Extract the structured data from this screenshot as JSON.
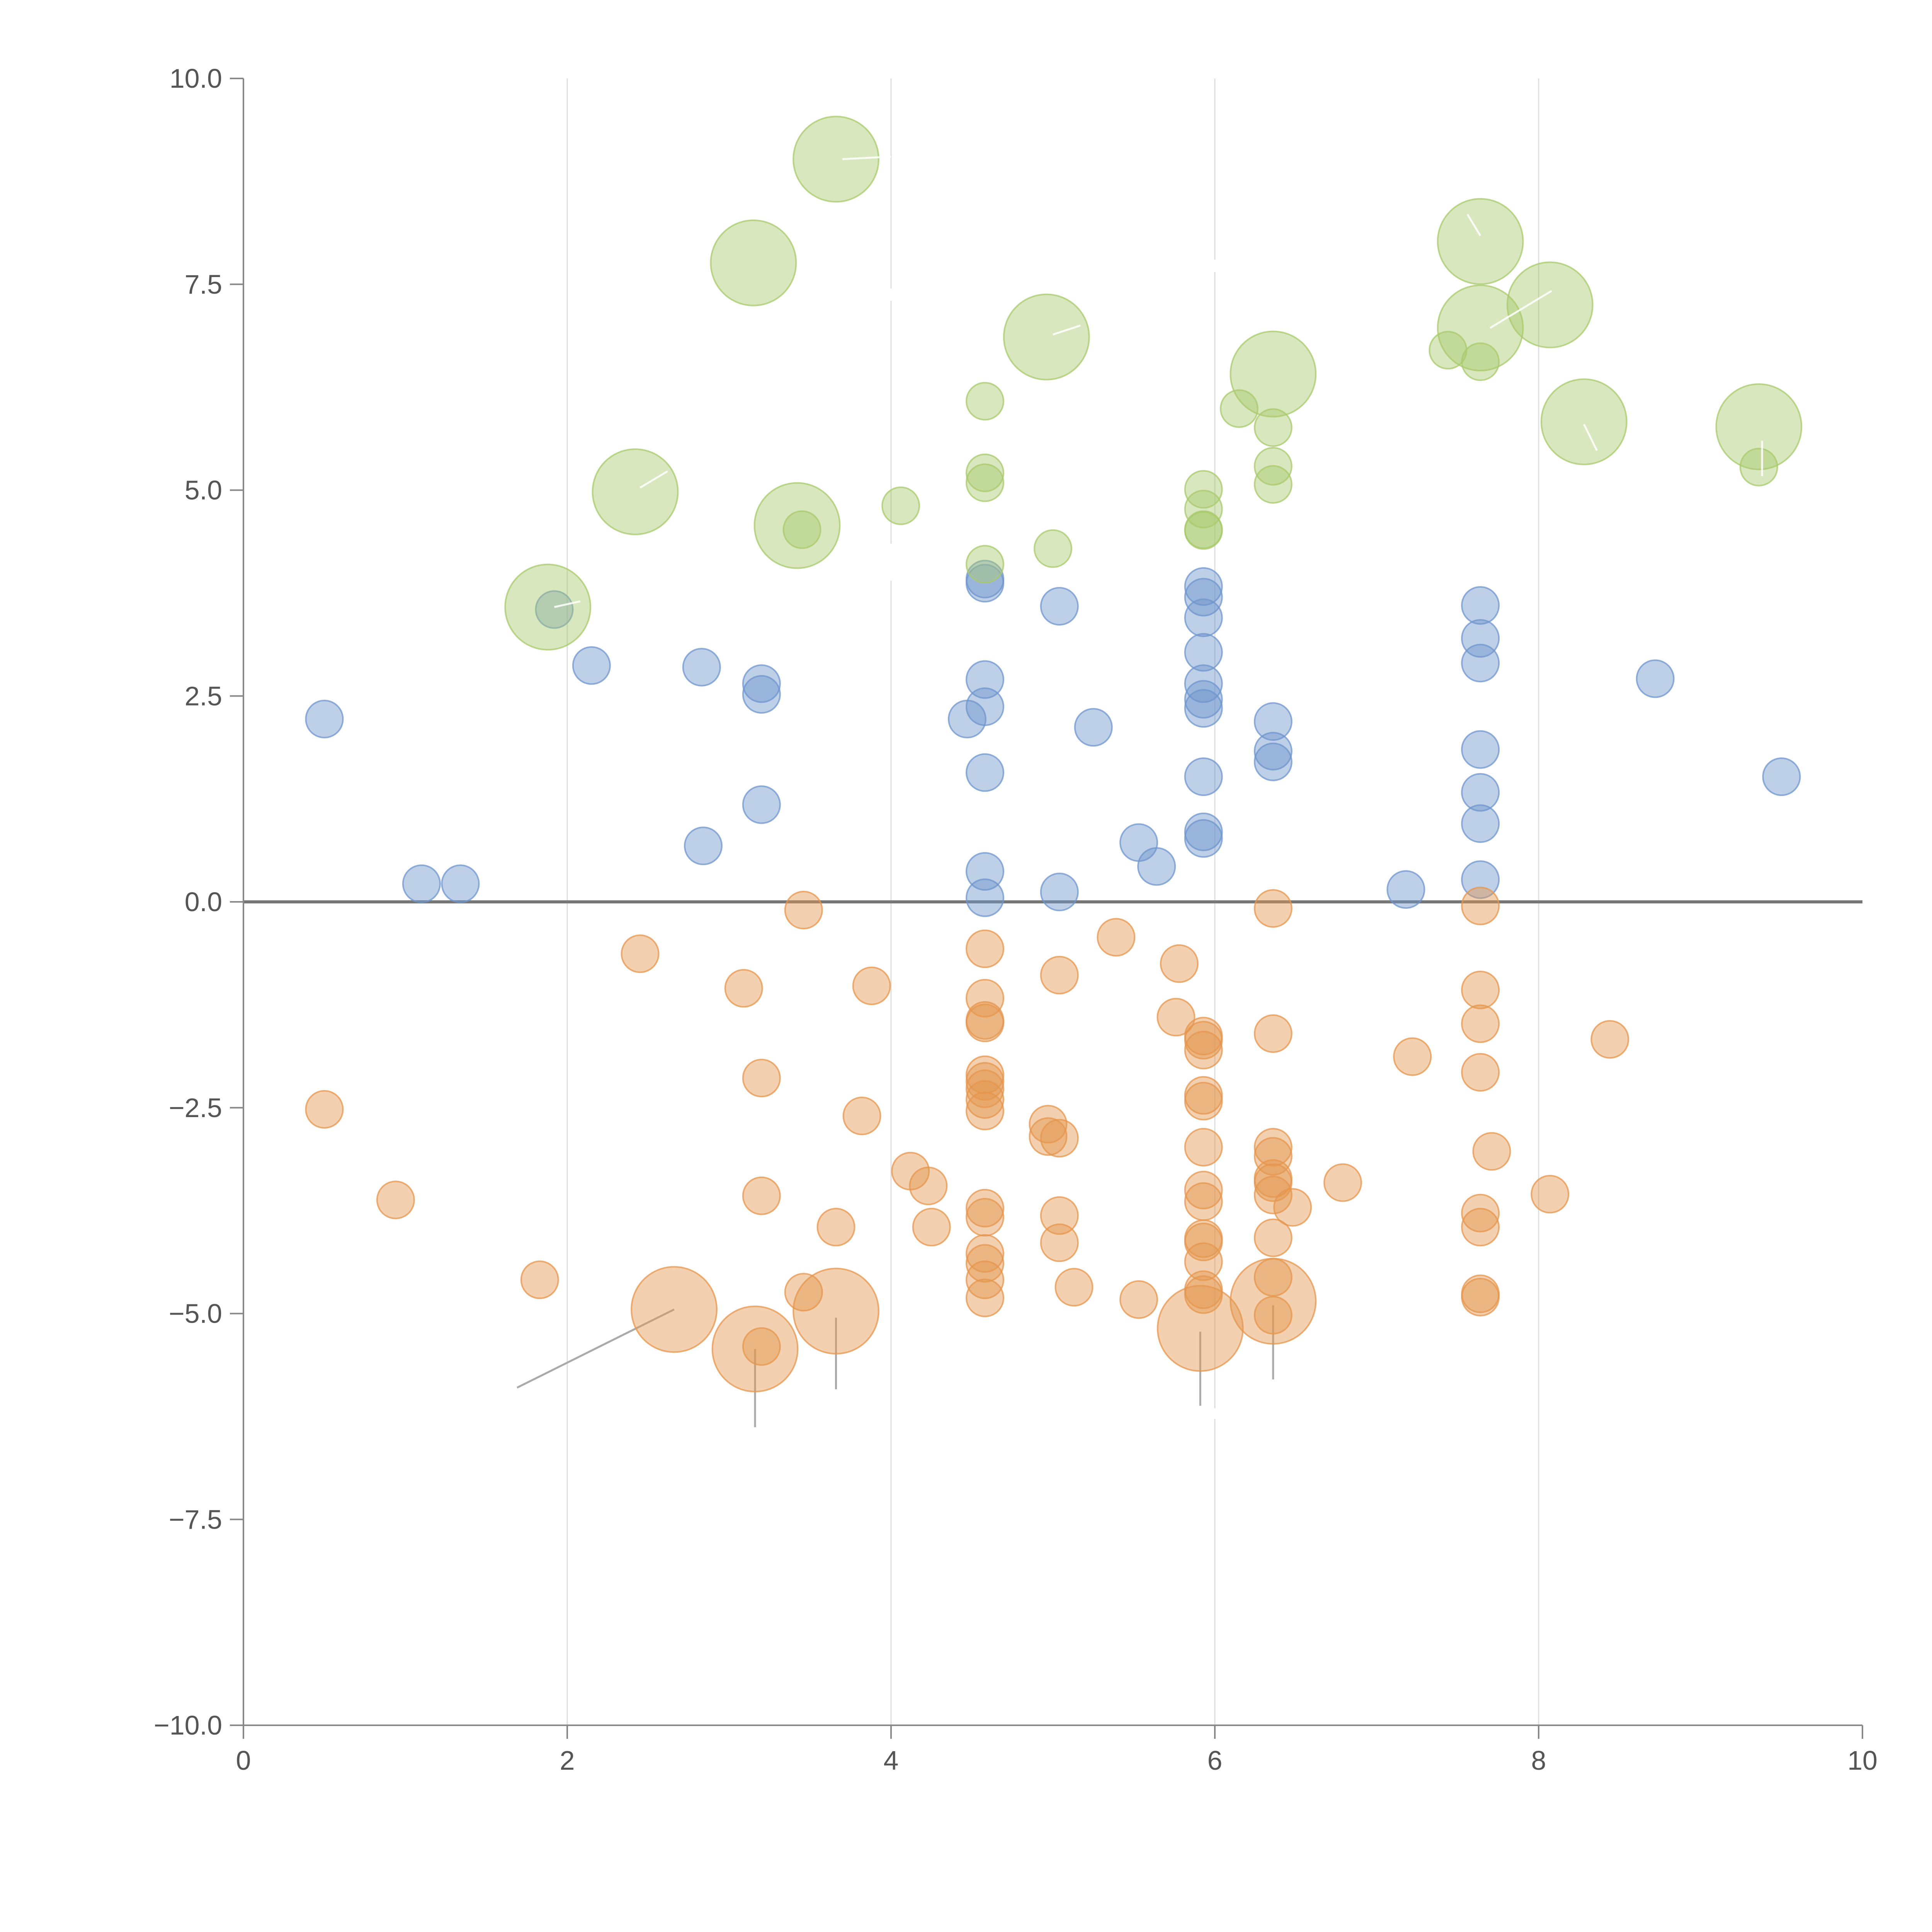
{
  "chart_data": {
    "type": "scatter",
    "title": "",
    "xlabel": "",
    "ylabel": "",
    "xlim": [
      0,
      10
    ],
    "ylim": [
      -10,
      10
    ],
    "x_ticks": [
      0,
      2,
      4,
      6,
      8,
      10
    ],
    "x_tick_labels": [
      "0",
      "2",
      "4",
      "6",
      "8",
      "10"
    ],
    "y_ticks": [
      10,
      7.5,
      5,
      2.5,
      0,
      -2.5,
      -5,
      -7.5,
      -10
    ],
    "y_tick_labels": [
      "10.0",
      "7.5",
      "5.0",
      "2.5",
      "0.0",
      "−2.5",
      "−5.0",
      "−7.5",
      "−10.0"
    ],
    "vertical_gridlines": [
      2,
      4,
      6,
      8
    ],
    "zero_line": 0,
    "legend": "none",
    "series": [
      {
        "name": "blue",
        "color": "#6f95cd",
        "points": [
          [
            0.5,
            2.22,
            1
          ],
          [
            1.1,
            0.22,
            1
          ],
          [
            1.34,
            0.22,
            1
          ],
          [
            1.92,
            3.55,
            1
          ],
          [
            2.15,
            2.87,
            1
          ],
          [
            2.83,
            2.85,
            1
          ],
          [
            2.84,
            0.68,
            1
          ],
          [
            3.2,
            2.65,
            1
          ],
          [
            3.2,
            2.52,
            1
          ],
          [
            3.2,
            1.18,
            1
          ],
          [
            4.47,
            2.22,
            1
          ],
          [
            4.58,
            3.92,
            1
          ],
          [
            4.58,
            3.87,
            1
          ],
          [
            4.58,
            2.7,
            1
          ],
          [
            4.58,
            2.37,
            1
          ],
          [
            4.58,
            1.57,
            1
          ],
          [
            4.58,
            0.37,
            1
          ],
          [
            4.58,
            0.05,
            1
          ],
          [
            5.04,
            3.59,
            1
          ],
          [
            5.04,
            0.12,
            1
          ],
          [
            5.25,
            2.12,
            1
          ],
          [
            5.53,
            0.72,
            1
          ],
          [
            5.64,
            0.43,
            1
          ],
          [
            5.93,
            3.83,
            1
          ],
          [
            5.93,
            3.7,
            1
          ],
          [
            5.93,
            3.45,
            1
          ],
          [
            5.93,
            3.03,
            1
          ],
          [
            5.93,
            2.65,
            1
          ],
          [
            5.93,
            2.46,
            1
          ],
          [
            5.93,
            2.35,
            1
          ],
          [
            5.93,
            1.52,
            1
          ],
          [
            5.93,
            0.85,
            1
          ],
          [
            5.93,
            0.77,
            1
          ],
          [
            6.36,
            2.19,
            1
          ],
          [
            6.36,
            1.83,
            1
          ],
          [
            6.36,
            1.7,
            1
          ],
          [
            7.18,
            0.15,
            1
          ],
          [
            7.64,
            3.6,
            1
          ],
          [
            7.64,
            3.2,
            1
          ],
          [
            7.64,
            2.9,
            1
          ],
          [
            7.64,
            1.85,
            1
          ],
          [
            7.64,
            1.33,
            1
          ],
          [
            7.64,
            0.95,
            1
          ],
          [
            7.64,
            0.27,
            1
          ],
          [
            8.72,
            2.71,
            1
          ],
          [
            9.5,
            1.52,
            1
          ]
        ]
      },
      {
        "name": "orange",
        "color": "#e5964e",
        "points": [
          [
            0.5,
            -2.52,
            1
          ],
          [
            0.94,
            -3.62,
            1
          ],
          [
            1.83,
            -4.59,
            1
          ],
          [
            2.45,
            -0.63,
            1
          ],
          [
            2.66,
            -4.95,
            2.3
          ],
          [
            3.09,
            -1.05,
            1
          ],
          [
            3.16,
            -5.43,
            2.3
          ],
          [
            3.2,
            -2.14,
            1
          ],
          [
            3.2,
            -3.57,
            1
          ],
          [
            3.2,
            -5.4,
            1
          ],
          [
            3.46,
            -0.1,
            1
          ],
          [
            3.46,
            -4.74,
            1
          ],
          [
            3.66,
            -4.97,
            2.3
          ],
          [
            3.66,
            -3.95,
            1
          ],
          [
            3.82,
            -2.6,
            1
          ],
          [
            3.88,
            -1.02,
            1
          ],
          [
            4.12,
            -3.27,
            1
          ],
          [
            4.23,
            -3.45,
            1
          ],
          [
            4.25,
            -3.95,
            1
          ],
          [
            4.58,
            -0.57,
            1
          ],
          [
            4.58,
            -1.17,
            1
          ],
          [
            4.58,
            -1.44,
            1
          ],
          [
            4.58,
            -1.47,
            1
          ],
          [
            4.58,
            -2.1,
            1
          ],
          [
            4.58,
            -2.18,
            1
          ],
          [
            4.58,
            -2.27,
            1
          ],
          [
            4.58,
            -2.4,
            1
          ],
          [
            4.58,
            -2.54,
            1
          ],
          [
            4.58,
            -3.72,
            1
          ],
          [
            4.58,
            -3.83,
            1
          ],
          [
            4.58,
            -4.27,
            1
          ],
          [
            4.58,
            -4.39,
            1
          ],
          [
            4.58,
            -4.59,
            1
          ],
          [
            4.58,
            -4.81,
            1
          ],
          [
            4.97,
            -2.7,
            1
          ],
          [
            4.97,
            -2.85,
            1
          ],
          [
            5.04,
            -2.87,
            1
          ],
          [
            5.04,
            -0.89,
            1
          ],
          [
            5.04,
            -3.81,
            1
          ],
          [
            5.04,
            -4.14,
            1
          ],
          [
            5.13,
            -4.68,
            1
          ],
          [
            5.39,
            -0.43,
            1
          ],
          [
            5.53,
            -4.83,
            1
          ],
          [
            5.76,
            -1.4,
            1
          ],
          [
            5.78,
            -0.75,
            1
          ],
          [
            5.91,
            -5.18,
            2.3
          ],
          [
            5.93,
            -1.63,
            1
          ],
          [
            5.93,
            -1.68,
            1
          ],
          [
            5.93,
            -1.8,
            1
          ],
          [
            5.93,
            -2.35,
            1
          ],
          [
            5.93,
            -2.42,
            1
          ],
          [
            5.93,
            -2.98,
            1
          ],
          [
            5.93,
            -3.5,
            1
          ],
          [
            5.93,
            -3.64,
            1
          ],
          [
            5.93,
            -4.09,
            1
          ],
          [
            5.93,
            -4.13,
            1
          ],
          [
            5.93,
            -4.37,
            1
          ],
          [
            5.93,
            -4.71,
            1
          ],
          [
            5.93,
            -4.77,
            1
          ],
          [
            6.36,
            -0.08,
            1
          ],
          [
            6.36,
            -1.6,
            1
          ],
          [
            6.36,
            -2.98,
            1
          ],
          [
            6.36,
            -3.09,
            1
          ],
          [
            6.36,
            -3.36,
            1
          ],
          [
            6.36,
            -3.41,
            1
          ],
          [
            6.36,
            -3.56,
            1
          ],
          [
            6.36,
            -4.08,
            1
          ],
          [
            6.36,
            -4.56,
            1
          ],
          [
            6.36,
            -4.85,
            2.3
          ],
          [
            6.36,
            -5.02,
            1
          ],
          [
            6.48,
            -3.71,
            1
          ],
          [
            6.79,
            -3.41,
            1
          ],
          [
            7.22,
            -1.88,
            1
          ],
          [
            7.64,
            -0.05,
            1
          ],
          [
            7.64,
            -1.07,
            1
          ],
          [
            7.64,
            -1.48,
            1
          ],
          [
            7.64,
            -2.07,
            1
          ],
          [
            7.64,
            -3.78,
            1
          ],
          [
            7.64,
            -3.95,
            1
          ],
          [
            7.64,
            -4.76,
            1
          ],
          [
            7.64,
            -4.8,
            1
          ],
          [
            7.71,
            -3.03,
            1
          ],
          [
            8.07,
            -3.55,
            1
          ],
          [
            8.44,
            -1.67,
            1
          ]
        ]
      },
      {
        "name": "green",
        "color": "#a8c96c",
        "points": [
          [
            1.88,
            3.58,
            2.3
          ],
          [
            2.42,
            4.98,
            2.3
          ],
          [
            3.15,
            7.76,
            2.3
          ],
          [
            3.42,
            4.57,
            2.3
          ],
          [
            3.45,
            4.52,
            1
          ],
          [
            3.66,
            9.02,
            2.3
          ],
          [
            4.06,
            4.81,
            1
          ],
          [
            4.58,
            6.08,
            1
          ],
          [
            4.58,
            5.21,
            1
          ],
          [
            4.58,
            5.09,
            1
          ],
          [
            4.58,
            4.1,
            1
          ],
          [
            4.96,
            6.86,
            2.3
          ],
          [
            5.0,
            4.29,
            1
          ],
          [
            5.93,
            5.01,
            1
          ],
          [
            5.93,
            4.77,
            1
          ],
          [
            5.93,
            4.52,
            1
          ],
          [
            5.93,
            4.51,
            1
          ],
          [
            6.15,
            5.99,
            1
          ],
          [
            6.36,
            6.41,
            2.3
          ],
          [
            6.36,
            5.76,
            1
          ],
          [
            6.36,
            5.29,
            1
          ],
          [
            6.36,
            5.07,
            1
          ],
          [
            7.44,
            6.7,
            1
          ],
          [
            7.64,
            8.02,
            2.3
          ],
          [
            7.64,
            6.97,
            2.3
          ],
          [
            7.64,
            6.56,
            1
          ],
          [
            8.07,
            7.25,
            2.3
          ],
          [
            8.28,
            5.83,
            2.3
          ],
          [
            9.36,
            5.77,
            2.3
          ],
          [
            9.36,
            5.28,
            1
          ]
        ]
      }
    ],
    "annotation_segments": [
      {
        "from": [
          2.66,
          -4.95
        ],
        "to": [
          1.69,
          -5.9
        ]
      },
      {
        "from": [
          3.16,
          -5.43
        ],
        "to": [
          3.16,
          -6.38
        ]
      },
      {
        "from": [
          3.66,
          -5.05
        ],
        "to": [
          3.66,
          -5.92
        ]
      },
      {
        "from": [
          5.91,
          -5.22
        ],
        "to": [
          5.91,
          -6.12
        ]
      },
      {
        "from": [
          6.36,
          -4.9
        ],
        "to": [
          6.36,
          -5.8
        ]
      }
    ],
    "inner_segments": [
      {
        "from": [
          1.92,
          3.58
        ],
        "to": [
          2.08,
          3.65
        ]
      },
      {
        "from": [
          2.45,
          5.03
        ],
        "to": [
          2.62,
          5.23
        ]
      },
      {
        "from": [
          3.7,
          9.02
        ],
        "to": [
          4.0,
          9.05
        ]
      },
      {
        "from": [
          5.0,
          6.89
        ],
        "to": [
          5.17,
          7.0
        ]
      },
      {
        "from": [
          7.7,
          6.97
        ],
        "to": [
          8.08,
          7.42
        ]
      },
      {
        "from": [
          7.64,
          8.09
        ],
        "to": [
          7.56,
          8.35
        ]
      },
      {
        "from": [
          8.28,
          5.8
        ],
        "to": [
          8.36,
          5.48
        ]
      },
      {
        "from": [
          9.38,
          5.6
        ],
        "to": [
          9.38,
          5.17
        ]
      }
    ],
    "gridline_breaks": [
      {
        "x": 4,
        "y": [
          7.3,
          7.45
        ]
      },
      {
        "x": 4,
        "y": [
          3.9,
          4.35
        ]
      },
      {
        "x": 6,
        "y": [
          7.65,
          7.8
        ]
      },
      {
        "x": 6,
        "y": [
          -6.15,
          -6.28
        ]
      }
    ]
  }
}
